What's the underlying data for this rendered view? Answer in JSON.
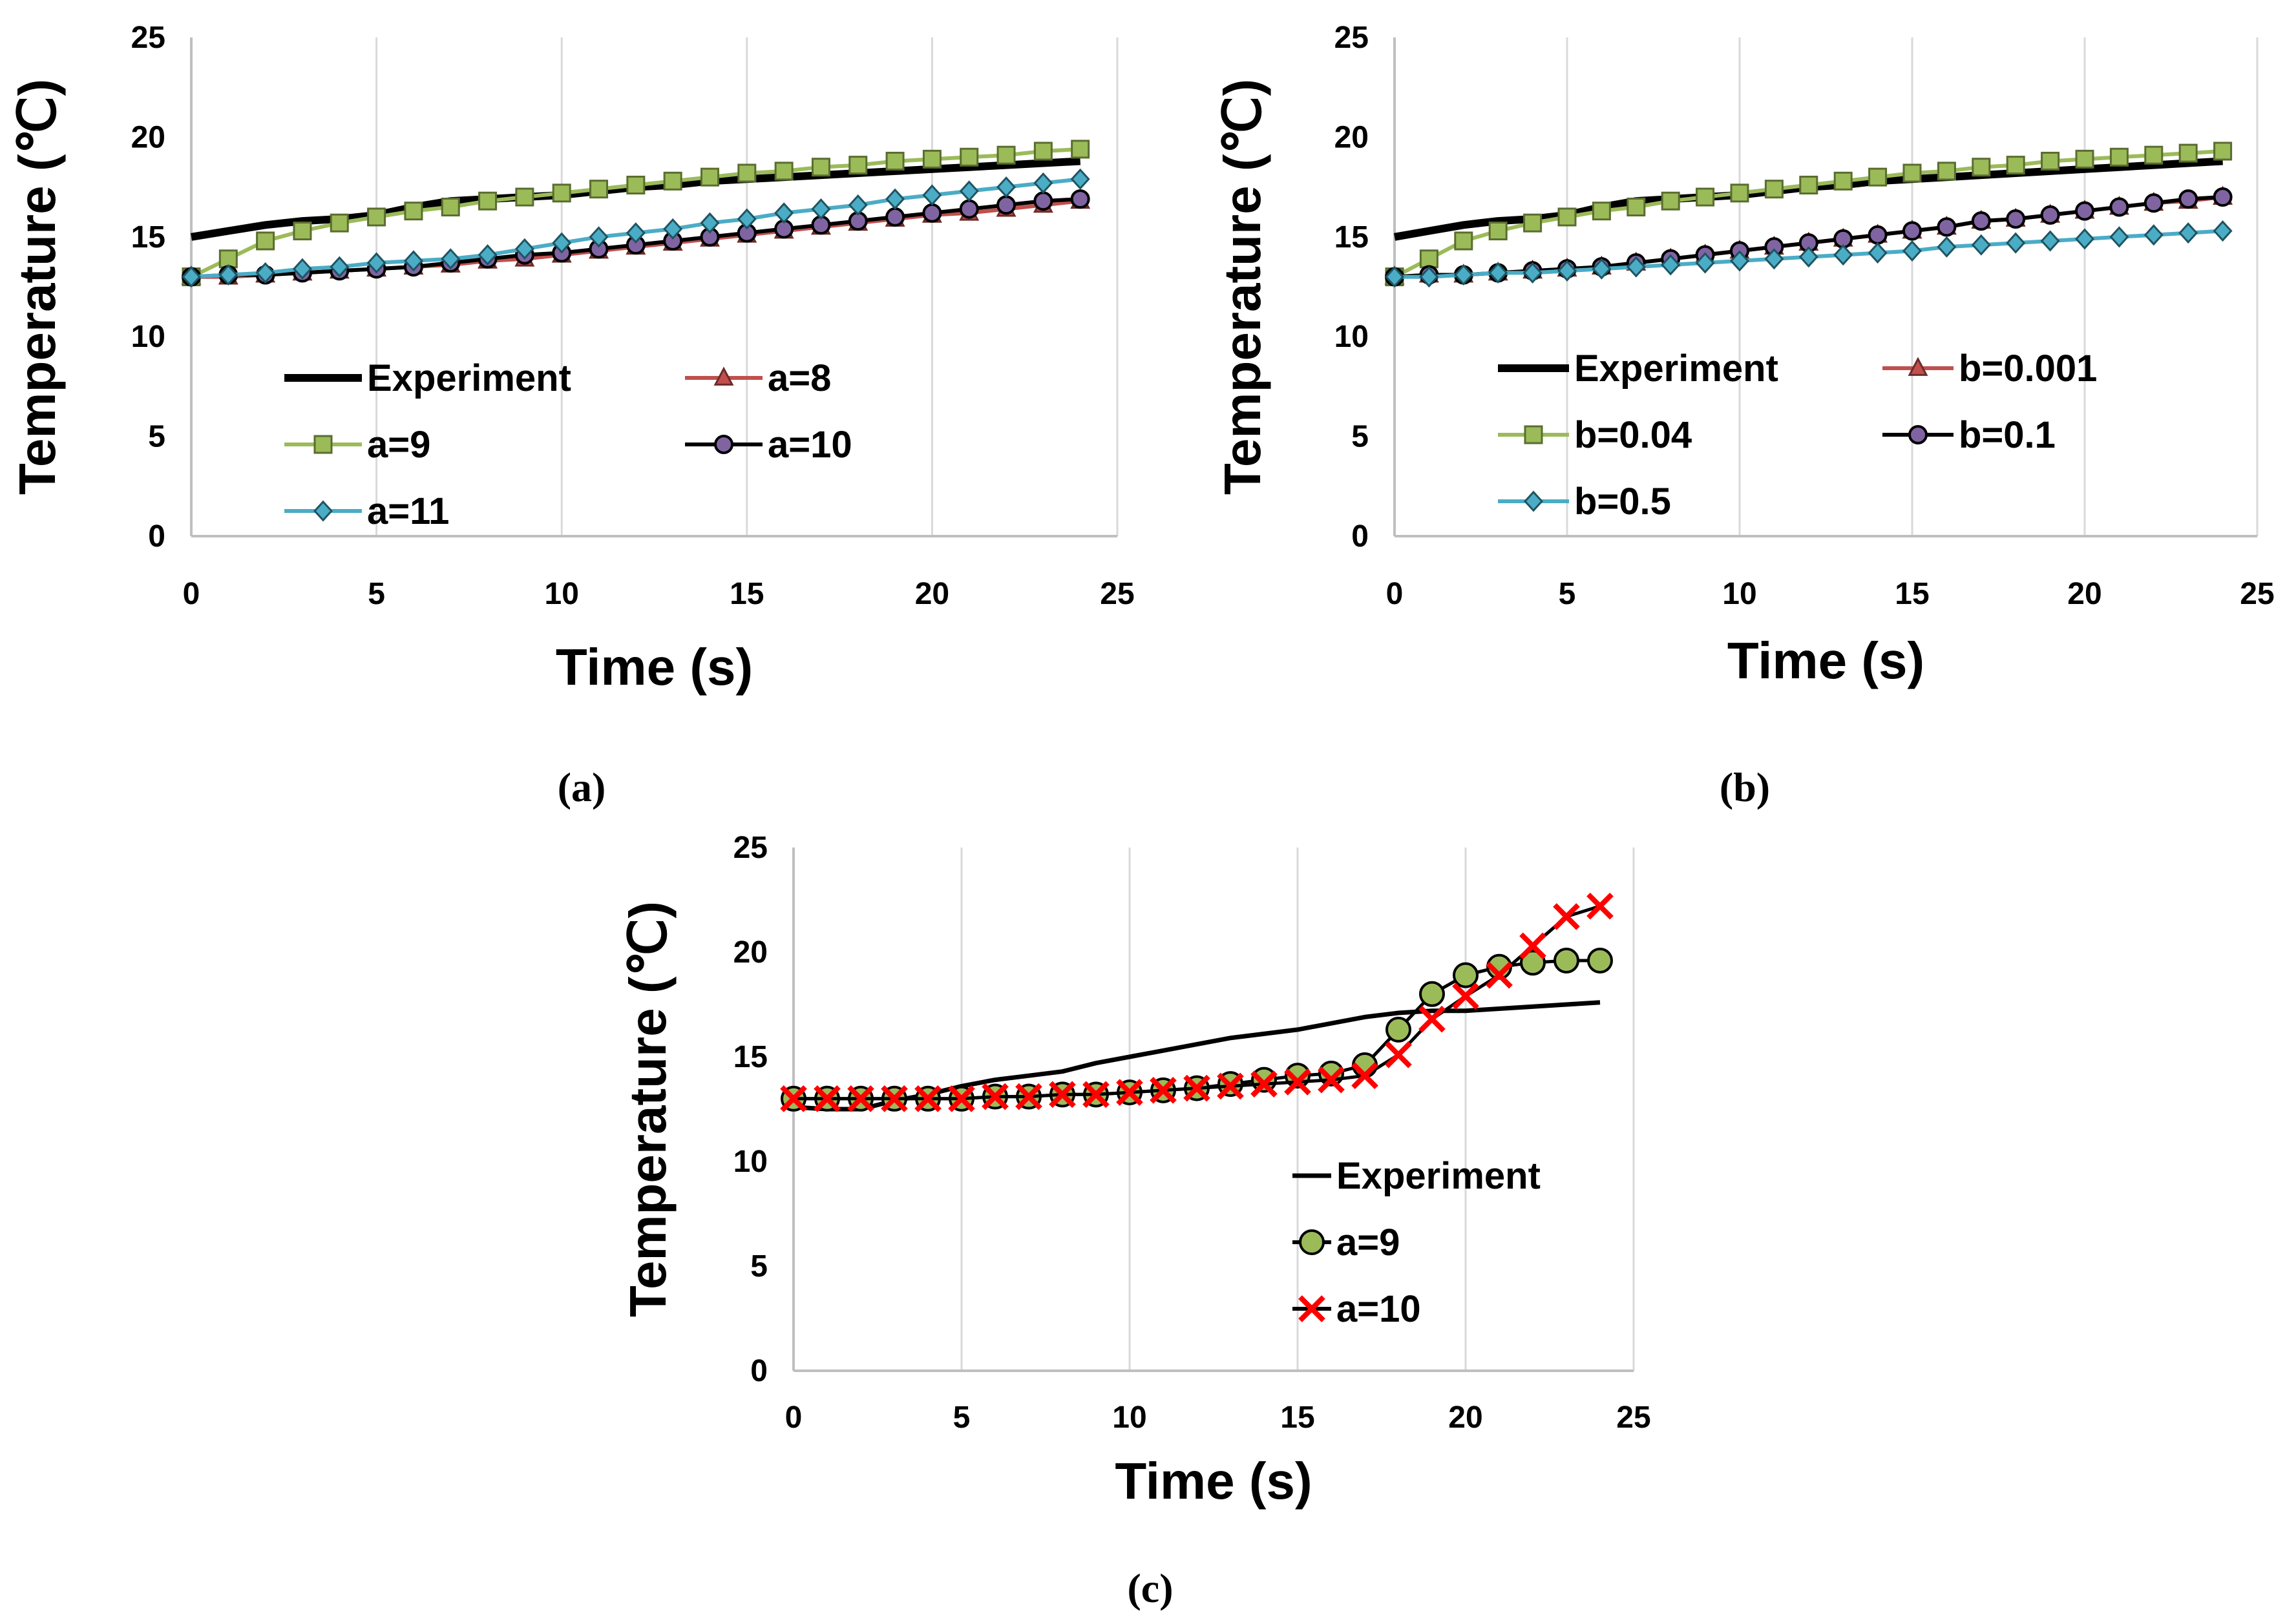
{
  "chart_data": [
    {
      "panel": "(a)",
      "type": "line",
      "xlabel": "Time (s)",
      "ylabel": "Temperature (℃)",
      "xlim": [
        0,
        25
      ],
      "ylim": [
        0,
        25
      ],
      "xticks": [
        "0",
        "5",
        "10",
        "15",
        "20",
        "25"
      ],
      "yticks": [
        "0",
        "5",
        "10",
        "15",
        "20",
        "25"
      ],
      "grid": "vertical",
      "legend": "inside, lower-middle",
      "series": [
        {
          "name": "Experiment",
          "color": "#000000",
          "marker": "none",
          "width": 12,
          "x": [
            0,
            1,
            2,
            3,
            4,
            5,
            6,
            7,
            8,
            9,
            10,
            11,
            12,
            13,
            14,
            15,
            16,
            17,
            18,
            19,
            20,
            21,
            22,
            23,
            24
          ],
          "values": [
            15.0,
            15.3,
            15.6,
            15.8,
            15.9,
            16.1,
            16.5,
            16.8,
            16.9,
            17.0,
            17.1,
            17.3,
            17.5,
            17.6,
            17.8,
            17.9,
            18.0,
            18.1,
            18.2,
            18.3,
            18.4,
            18.5,
            18.6,
            18.7,
            18.8
          ]
        },
        {
          "name": "a=8",
          "color": "#c0504d",
          "marker": "triangle",
          "x": [
            0,
            1,
            2,
            3,
            4,
            5,
            6,
            7,
            8,
            9,
            10,
            11,
            12,
            13,
            14,
            15,
            16,
            17,
            18,
            19,
            20,
            21,
            22,
            23,
            24
          ],
          "values": [
            13.0,
            13.0,
            13.1,
            13.2,
            13.3,
            13.4,
            13.5,
            13.6,
            13.8,
            13.9,
            14.1,
            14.3,
            14.5,
            14.7,
            14.9,
            15.1,
            15.3,
            15.5,
            15.7,
            15.9,
            16.1,
            16.2,
            16.4,
            16.6,
            16.8
          ]
        },
        {
          "name": "a=9",
          "color": "#9bbb59",
          "marker": "square",
          "x": [
            0,
            1,
            2,
            3,
            4,
            5,
            6,
            7,
            8,
            9,
            10,
            11,
            12,
            13,
            14,
            15,
            16,
            17,
            18,
            19,
            20,
            21,
            22,
            23,
            24
          ],
          "values": [
            13.0,
            13.9,
            14.8,
            15.3,
            15.7,
            16.0,
            16.3,
            16.5,
            16.8,
            17.0,
            17.2,
            17.4,
            17.6,
            17.8,
            18.0,
            18.2,
            18.3,
            18.5,
            18.6,
            18.8,
            18.9,
            19.0,
            19.1,
            19.3,
            19.4
          ]
        },
        {
          "name": "a=10",
          "color": "#000000",
          "marker": "circle",
          "fill": "#8064a2",
          "x": [
            0,
            1,
            2,
            3,
            4,
            5,
            6,
            7,
            8,
            9,
            10,
            11,
            12,
            13,
            14,
            15,
            16,
            17,
            18,
            19,
            20,
            21,
            22,
            23,
            24
          ],
          "values": [
            13.0,
            13.1,
            13.1,
            13.2,
            13.3,
            13.4,
            13.5,
            13.7,
            13.9,
            14.1,
            14.2,
            14.4,
            14.6,
            14.8,
            15.0,
            15.2,
            15.4,
            15.6,
            15.8,
            16.0,
            16.2,
            16.4,
            16.6,
            16.8,
            16.9
          ]
        },
        {
          "name": "a=11",
          "color": "#4bacc6",
          "marker": "diamond",
          "x": [
            0,
            1,
            2,
            3,
            4,
            5,
            6,
            7,
            8,
            9,
            10,
            11,
            12,
            13,
            14,
            15,
            16,
            17,
            18,
            19,
            20,
            21,
            22,
            23,
            24
          ],
          "values": [
            13.0,
            13.1,
            13.2,
            13.4,
            13.5,
            13.7,
            13.8,
            13.9,
            14.1,
            14.4,
            14.7,
            15.0,
            15.2,
            15.4,
            15.7,
            15.9,
            16.2,
            16.4,
            16.6,
            16.9,
            17.1,
            17.3,
            17.5,
            17.7,
            17.9
          ]
        }
      ]
    },
    {
      "panel": "(b)",
      "type": "line",
      "xlabel": "Time (s)",
      "ylabel": "Temperature (℃)",
      "xlim": [
        0,
        25
      ],
      "ylim": [
        0,
        25
      ],
      "xticks": [
        "0",
        "5",
        "10",
        "15",
        "20",
        "25"
      ],
      "yticks": [
        "0",
        "5",
        "10",
        "15",
        "20",
        "25"
      ],
      "grid": "vertical",
      "legend": "inside, lower-middle",
      "series": [
        {
          "name": "Experiment",
          "color": "#000000",
          "marker": "none",
          "width": 12,
          "x": [
            0,
            1,
            2,
            3,
            4,
            5,
            6,
            7,
            8,
            9,
            10,
            11,
            12,
            13,
            14,
            15,
            16,
            17,
            18,
            19,
            20,
            21,
            22,
            23,
            24
          ],
          "values": [
            15.0,
            15.3,
            15.6,
            15.8,
            15.9,
            16.1,
            16.5,
            16.8,
            16.9,
            17.0,
            17.1,
            17.3,
            17.5,
            17.6,
            17.8,
            17.9,
            18.0,
            18.1,
            18.2,
            18.3,
            18.4,
            18.5,
            18.6,
            18.7,
            18.8
          ]
        },
        {
          "name": "b=0.001",
          "color": "#c0504d",
          "marker": "triangle",
          "x": [
            0,
            1,
            2,
            3,
            4,
            5,
            6,
            7,
            8,
            9,
            10,
            11,
            12,
            13,
            14,
            15,
            16,
            17,
            18,
            19,
            20,
            21,
            22,
            23,
            24
          ],
          "values": [
            13.0,
            13.1,
            13.1,
            13.2,
            13.3,
            13.4,
            13.5,
            13.7,
            13.9,
            14.1,
            14.3,
            14.5,
            14.7,
            14.9,
            15.1,
            15.3,
            15.5,
            15.8,
            15.9,
            16.1,
            16.3,
            16.5,
            16.7,
            16.8,
            17.0
          ]
        },
        {
          "name": "b=0.04",
          "color": "#9bbb59",
          "marker": "square",
          "x": [
            0,
            1,
            2,
            3,
            4,
            5,
            6,
            7,
            8,
            9,
            10,
            11,
            12,
            13,
            14,
            15,
            16,
            17,
            18,
            19,
            20,
            21,
            22,
            23,
            24
          ],
          "values": [
            13.0,
            13.9,
            14.8,
            15.3,
            15.7,
            16.0,
            16.3,
            16.5,
            16.8,
            17.0,
            17.2,
            17.4,
            17.6,
            17.8,
            18.0,
            18.2,
            18.3,
            18.5,
            18.6,
            18.8,
            18.9,
            19.0,
            19.1,
            19.2,
            19.3
          ]
        },
        {
          "name": "b=0.1",
          "color": "#000000",
          "marker": "circle",
          "fill": "#8064a2",
          "x": [
            0,
            1,
            2,
            3,
            4,
            5,
            6,
            7,
            8,
            9,
            10,
            11,
            12,
            13,
            14,
            15,
            16,
            17,
            18,
            19,
            20,
            21,
            22,
            23,
            24
          ],
          "values": [
            13.0,
            13.1,
            13.1,
            13.2,
            13.3,
            13.4,
            13.5,
            13.7,
            13.9,
            14.1,
            14.3,
            14.5,
            14.7,
            14.9,
            15.1,
            15.3,
            15.5,
            15.8,
            15.9,
            16.1,
            16.3,
            16.5,
            16.7,
            16.9,
            17.0
          ]
        },
        {
          "name": "b=0.5",
          "color": "#4bacc6",
          "marker": "diamond",
          "x": [
            0,
            1,
            2,
            3,
            4,
            5,
            6,
            7,
            8,
            9,
            10,
            11,
            12,
            13,
            14,
            15,
            16,
            17,
            18,
            19,
            20,
            21,
            22,
            23,
            24
          ],
          "values": [
            13.0,
            13.0,
            13.1,
            13.2,
            13.2,
            13.3,
            13.4,
            13.5,
            13.6,
            13.7,
            13.8,
            13.9,
            14.0,
            14.1,
            14.2,
            14.3,
            14.5,
            14.6,
            14.7,
            14.8,
            14.9,
            15.0,
            15.1,
            15.2,
            15.3
          ]
        }
      ]
    },
    {
      "panel": "(c)",
      "type": "line",
      "xlabel": "Time (s)",
      "ylabel": "Temperature (℃)",
      "xlim": [
        0,
        25
      ],
      "ylim": [
        0,
        25
      ],
      "xticks": [
        "0",
        "5",
        "10",
        "15",
        "20",
        "25"
      ],
      "yticks": [
        "0",
        "5",
        "10",
        "15",
        "20",
        "25"
      ],
      "grid": "vertical",
      "legend": "inside, lower-right",
      "series": [
        {
          "name": "Experiment",
          "color": "#000000",
          "marker": "none",
          "width": 7,
          "x": [
            0,
            1,
            2,
            3,
            4,
            5,
            6,
            7,
            8,
            9,
            10,
            11,
            12,
            13,
            14,
            15,
            16,
            17,
            18,
            19,
            20,
            21,
            22,
            23,
            24
          ],
          "values": [
            12.6,
            12.5,
            12.5,
            12.9,
            13.2,
            13.6,
            13.9,
            14.1,
            14.3,
            14.7,
            15.0,
            15.3,
            15.6,
            15.9,
            16.1,
            16.3,
            16.6,
            16.9,
            17.1,
            17.2,
            17.2,
            17.3,
            17.4,
            17.5,
            17.6
          ]
        },
        {
          "name": "a=9",
          "color": "#000000",
          "marker": "circle",
          "fill": "#9bbb59",
          "x": [
            0,
            1,
            2,
            3,
            4,
            5,
            6,
            7,
            8,
            9,
            10,
            11,
            12,
            13,
            14,
            15,
            16,
            17,
            18,
            19,
            20,
            21,
            22,
            23,
            24
          ],
          "values": [
            13.0,
            13.0,
            13.0,
            13.0,
            13.0,
            13.0,
            13.1,
            13.1,
            13.2,
            13.2,
            13.3,
            13.4,
            13.5,
            13.7,
            13.9,
            14.1,
            14.2,
            14.6,
            16.3,
            18.0,
            18.9,
            19.3,
            19.5,
            19.6,
            19.6
          ]
        },
        {
          "name": "a=10",
          "color": "#000000",
          "marker": "x",
          "fill": "#ff0000",
          "x": [
            0,
            1,
            2,
            3,
            4,
            5,
            6,
            7,
            8,
            9,
            10,
            11,
            12,
            13,
            14,
            15,
            16,
            17,
            18,
            19,
            20,
            21,
            22,
            23,
            24
          ],
          "values": [
            13.0,
            13.0,
            13.0,
            13.0,
            13.0,
            13.0,
            13.1,
            13.1,
            13.2,
            13.2,
            13.3,
            13.4,
            13.5,
            13.6,
            13.7,
            13.8,
            13.9,
            14.1,
            15.1,
            16.8,
            17.9,
            18.9,
            20.3,
            21.7,
            22.2
          ]
        }
      ]
    }
  ]
}
